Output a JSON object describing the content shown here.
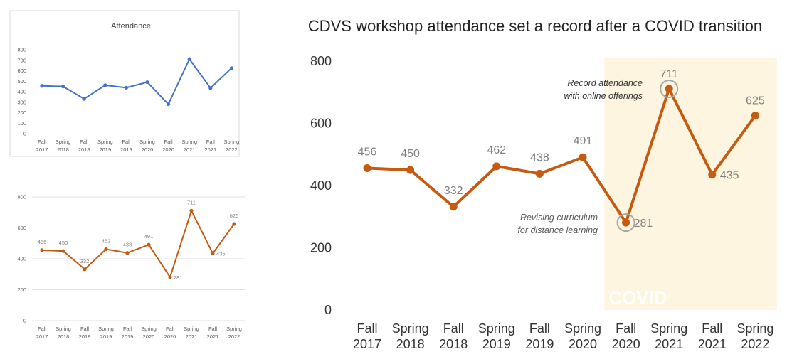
{
  "chart_data": [
    {
      "type": "line",
      "title": "Attendance",
      "categories": [
        [
          "Fall",
          "2017"
        ],
        [
          "Spring",
          "2018"
        ],
        [
          "Fall",
          "2018"
        ],
        [
          "Spring",
          "2019"
        ],
        [
          "Fall",
          "2019"
        ],
        [
          "Spring",
          "2020"
        ],
        [
          "Fall",
          "2020"
        ],
        [
          "Spring",
          "2021"
        ],
        [
          "Fall",
          "2021"
        ],
        [
          "Spring",
          "2022"
        ]
      ],
      "values": [
        456,
        450,
        332,
        462,
        438,
        491,
        281,
        711,
        435,
        625
      ],
      "ylim": [
        0,
        800
      ],
      "yticks": [
        0,
        100,
        200,
        300,
        400,
        500,
        600,
        700,
        800
      ],
      "grid": false,
      "data_labels": false,
      "color": "#4472c4"
    },
    {
      "type": "line",
      "title": "",
      "categories": [
        [
          "Fall",
          "2017"
        ],
        [
          "Spring",
          "2018"
        ],
        [
          "Fall",
          "2018"
        ],
        [
          "Spring",
          "2019"
        ],
        [
          "Fall",
          "2019"
        ],
        [
          "Spring",
          "2020"
        ],
        [
          "Fall",
          "2020"
        ],
        [
          "Spring",
          "2021"
        ],
        [
          "Fall",
          "2021"
        ],
        [
          "Spring",
          "2022"
        ]
      ],
      "values": [
        456,
        450,
        332,
        462,
        438,
        491,
        281,
        711,
        435,
        625
      ],
      "ylim": [
        0,
        800
      ],
      "yticks": [
        0,
        200,
        400,
        600,
        800
      ],
      "grid": true,
      "data_labels": true,
      "color": "#c55a11"
    },
    {
      "type": "line",
      "title": "CDVS workshop attendance set a record after a COVID transition",
      "categories": [
        [
          "Fall",
          "2017"
        ],
        [
          "Spring",
          "2018"
        ],
        [
          "Fall",
          "2018"
        ],
        [
          "Spring",
          "2019"
        ],
        [
          "Fall",
          "2019"
        ],
        [
          "Spring",
          "2020"
        ],
        [
          "Fall",
          "2020"
        ],
        [
          "Spring",
          "2021"
        ],
        [
          "Fall",
          "2021"
        ],
        [
          "Spring",
          "2022"
        ]
      ],
      "values": [
        456,
        450,
        332,
        462,
        438,
        491,
        281,
        711,
        435,
        625
      ],
      "ylim": [
        0,
        800
      ],
      "yticks": [
        0,
        200,
        400,
        600,
        800
      ],
      "grid": false,
      "data_labels": true,
      "color": "#c55a11",
      "shaded_region": {
        "label": "COVID",
        "from_category_index": 6,
        "to_category_index": 9,
        "color": "#fdf5e0"
      },
      "annotations": [
        {
          "text_lines": [
            "Record attendance",
            "with online offerings"
          ],
          "category_index": 7
        },
        {
          "text_lines": [
            "Revising curriculum",
            "for distance learning"
          ],
          "category_index": 6
        }
      ]
    }
  ]
}
